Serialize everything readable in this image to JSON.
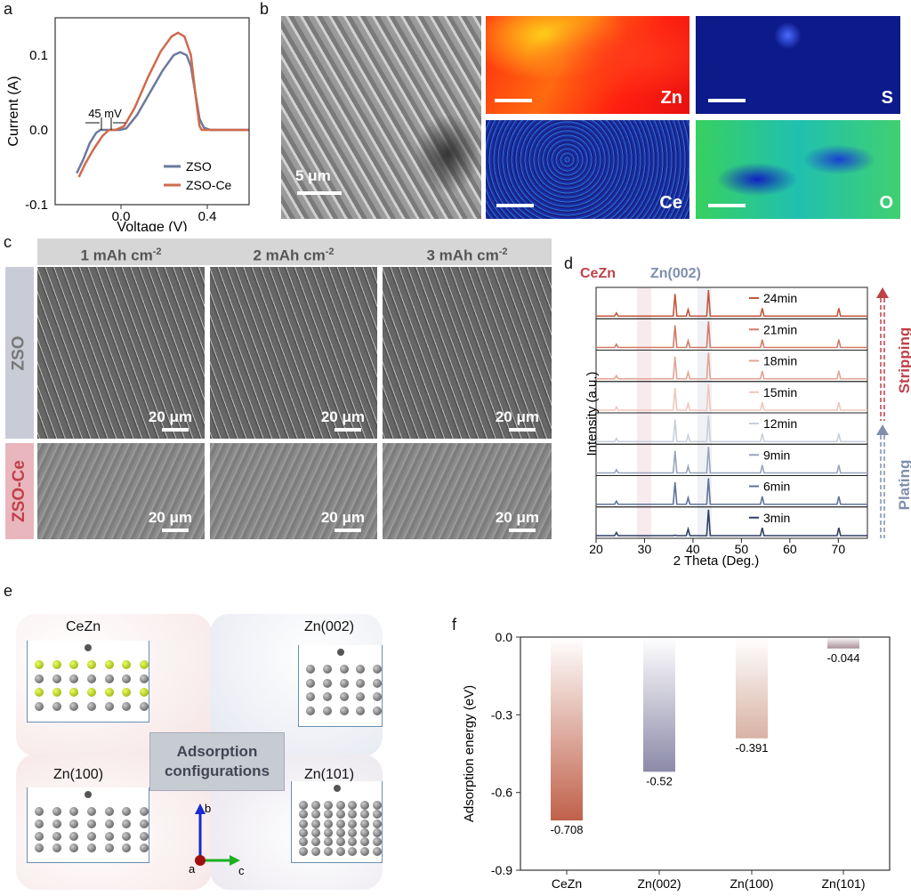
{
  "panels": {
    "a": "a",
    "b": "b",
    "c": "c",
    "d": "d",
    "e": "e",
    "f": "f"
  },
  "b": {
    "scale_bar": "5 μm",
    "maps": [
      "Zn",
      "S",
      "Ce",
      "O"
    ]
  },
  "c": {
    "columns": [
      "1 mAh cm",
      "2 mAh cm",
      "3 mAh cm"
    ],
    "superscript": "-2",
    "rows": [
      "ZSO",
      "ZSO-Ce"
    ],
    "scale_bar": "20 μm"
  },
  "d": {
    "tags": {
      "cezn": "CeZn",
      "zn002": "Zn(002)"
    },
    "arrows": {
      "stripping": "Stripping",
      "plating": "Plating"
    }
  },
  "e": {
    "labels": [
      "CeZn",
      "Zn(002)",
      "Zn(100)",
      "Zn(101)"
    ],
    "center_line1": "Adsorption",
    "center_line2": "configurations",
    "axes": {
      "a": "a",
      "b": "b",
      "c": "c"
    }
  },
  "colors": {
    "zso": "#6b7a9c",
    "zsoce": "#cf6a4c",
    "cezn_tag": "#c0414a",
    "zn002_tag": "#7f8fab"
  },
  "chart_data": [
    {
      "id": "a",
      "type": "line",
      "xlabel": "Voltage (V)",
      "ylabel": "Current (A)",
      "xlim": [
        -0.3,
        0.6
      ],
      "ylim": [
        -0.1,
        0.15
      ],
      "xticks": [
        "0.0",
        "0.4"
      ],
      "yticks": [
        "-0.1",
        "0.0",
        "0.1"
      ],
      "annotation": "45 mV",
      "legend_position": "bottom-right",
      "series": [
        {
          "name": "ZSO",
          "x": [
            -0.2,
            -0.17,
            -0.14,
            -0.11,
            -0.09,
            -0.05,
            0.0,
            0.03,
            0.08,
            0.14,
            0.2,
            0.25,
            0.28,
            0.31,
            0.33,
            0.35,
            0.37,
            0.39,
            0.42,
            0.6
          ],
          "y": [
            -0.058,
            -0.04,
            -0.018,
            -0.004,
            0,
            0,
            0,
            0.002,
            0.02,
            0.05,
            0.08,
            0.1,
            0.104,
            0.1,
            0.085,
            0.05,
            0.015,
            0.003,
            0,
            0
          ]
        },
        {
          "name": "ZSO-Ce",
          "x": [
            -0.19,
            -0.16,
            -0.12,
            -0.08,
            -0.05,
            -0.02,
            0.02,
            0.07,
            0.13,
            0.19,
            0.24,
            0.27,
            0.3,
            0.33,
            0.35,
            0.37,
            0.38,
            0.6
          ],
          "y": [
            -0.063,
            -0.045,
            -0.025,
            -0.008,
            0,
            0,
            0.005,
            0.03,
            0.07,
            0.105,
            0.125,
            0.13,
            0.125,
            0.1,
            0.05,
            0.005,
            0,
            0
          ]
        }
      ]
    },
    {
      "id": "d",
      "type": "line",
      "xlabel": "2 Theta (Deg.)",
      "ylabel": "Intensity (a.u.)",
      "xlim": [
        20,
        76
      ],
      "xticks": [
        "20",
        "30",
        "40",
        "50",
        "60",
        "70"
      ],
      "series": [
        {
          "name": "24min",
          "color": "#c4553b"
        },
        {
          "name": "21min",
          "color": "#d27a66"
        },
        {
          "name": "18min",
          "color": "#e2a394"
        },
        {
          "name": "15min",
          "color": "#efc6bc"
        },
        {
          "name": "12min",
          "color": "#c7cfdb"
        },
        {
          "name": "9min",
          "color": "#98a4ba"
        },
        {
          "name": "6min",
          "color": "#5f739a"
        },
        {
          "name": "3min",
          "color": "#2f3f63"
        }
      ],
      "peaks": [
        24.2,
        36.3,
        39,
        43.2,
        54.3,
        70.1
      ]
    },
    {
      "id": "f",
      "type": "bar",
      "xlabel": "",
      "ylabel": "Adsorption energy (eV)",
      "ylim": [
        -0.9,
        0.0
      ],
      "yticks": [
        "0.0",
        "-0.3",
        "-0.6",
        "-0.9"
      ],
      "categories": [
        "CeZn",
        "Zn(002)",
        "Zn(100)",
        "Zn(101)"
      ],
      "values": [
        -0.708,
        -0.52,
        -0.391,
        -0.044
      ],
      "labels": [
        "-0.708",
        "-0.52",
        "-0.391",
        "-0.044"
      ],
      "colors": [
        "#c0614a",
        "#8c8aa8",
        "#d9b2a4",
        "#a89098"
      ]
    }
  ]
}
